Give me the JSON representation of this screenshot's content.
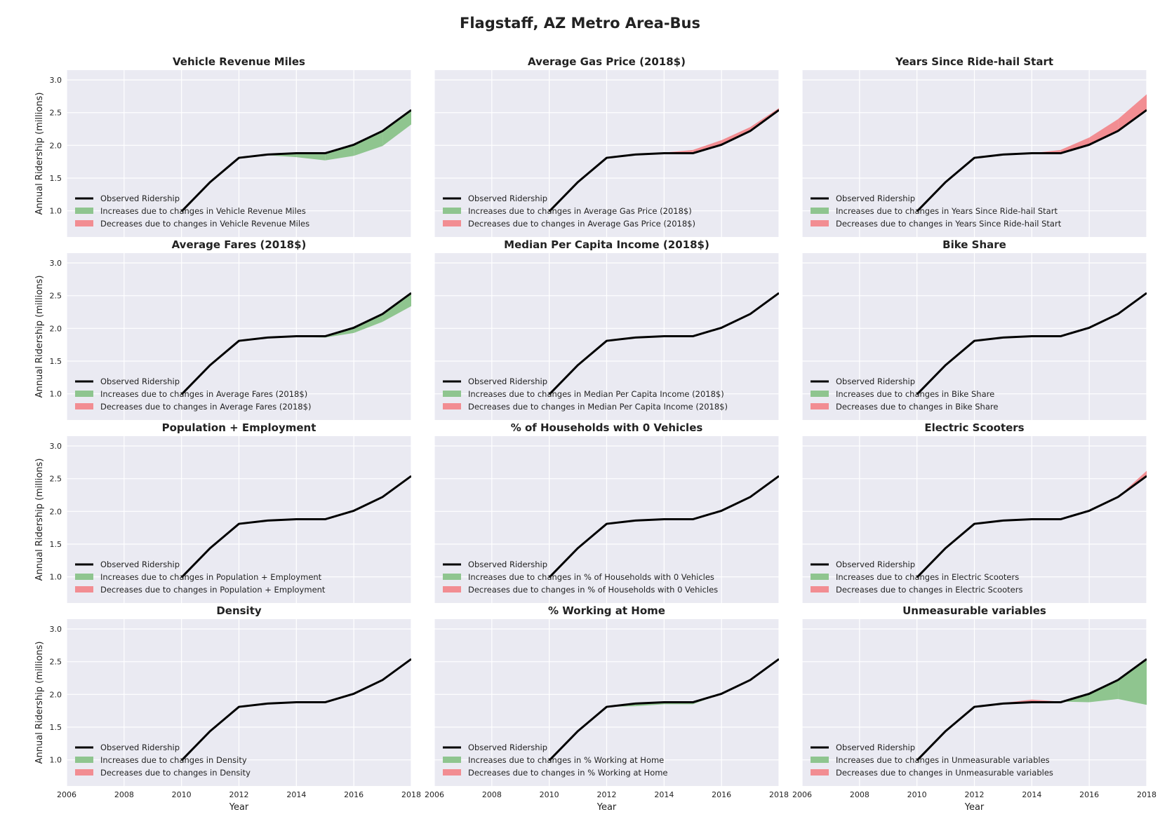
{
  "title": "Flagstaff, AZ Metro Area-Bus",
  "colors": {
    "panel_bg": "#eaeaf2",
    "grid": "#ffffff",
    "observed": "#000000",
    "increase": "#8fc58f",
    "decrease": "#f28d92"
  },
  "chart_data": {
    "type": "line",
    "layout": "4x3 small multiples",
    "xlabel": "Year",
    "ylabel": "Annual Ridership (millions)",
    "xlim": [
      2006,
      2018
    ],
    "ylim": [
      0.6,
      3.15
    ],
    "x_ticks": [
      2006,
      2008,
      2010,
      2012,
      2014,
      2016,
      2018
    ],
    "y_ticks": [
      1.0,
      1.5,
      2.0,
      2.5,
      3.0
    ],
    "y_tick_labels": [
      "1.0",
      "1.5",
      "2.0",
      "2.5",
      "3.0"
    ],
    "grid": true,
    "legend_placement": "lower-left",
    "legend_observed": "Observed Ridership",
    "legend_increase_prefix": "Increases due to changes in ",
    "legend_decrease_prefix": "Decreases due to changes in ",
    "x": [
      2010,
      2011,
      2012,
      2013,
      2014,
      2015,
      2016,
      2017,
      2018
    ],
    "observed": [
      0.99,
      1.44,
      1.81,
      1.86,
      1.88,
      1.88,
      2.01,
      2.22,
      2.54
    ],
    "panels": [
      {
        "title": "Vehicle Revenue Miles",
        "variable": "Vehicle Revenue Miles",
        "counterfactual": [
          0.99,
          1.44,
          1.81,
          1.85,
          1.82,
          1.77,
          1.84,
          1.99,
          2.32
        ]
      },
      {
        "title": "Average Gas Price (2018$)",
        "variable": "Average Gas Price (2018$)",
        "counterfactual": [
          0.99,
          1.44,
          1.81,
          1.86,
          1.89,
          1.93,
          2.08,
          2.28,
          2.57
        ]
      },
      {
        "title": "Years Since Ride-hail Start",
        "variable": "Years Since Ride-hail Start",
        "counterfactual": [
          0.99,
          1.44,
          1.81,
          1.86,
          1.88,
          1.93,
          2.12,
          2.4,
          2.78
        ]
      },
      {
        "title": "Average Fares (2018$)",
        "variable": "Average Fares (2018$)",
        "counterfactual": [
          0.99,
          1.44,
          1.81,
          1.86,
          1.87,
          1.86,
          1.93,
          2.1,
          2.34
        ]
      },
      {
        "title": "Median Per Capita Income (2018$)",
        "variable": "Median Per Capita Income (2018$)",
        "counterfactual": [
          0.99,
          1.44,
          1.81,
          1.86,
          1.88,
          1.88,
          2.01,
          2.22,
          2.54
        ]
      },
      {
        "title": "Bike Share",
        "variable": "Bike Share",
        "counterfactual": [
          0.99,
          1.44,
          1.81,
          1.86,
          1.88,
          1.88,
          2.01,
          2.22,
          2.54
        ]
      },
      {
        "title": "Population + Employment",
        "variable": "Population + Employment",
        "counterfactual": [
          0.99,
          1.44,
          1.81,
          1.86,
          1.88,
          1.88,
          2.01,
          2.22,
          2.54
        ]
      },
      {
        "title": "% of Households with 0 Vehicles",
        "variable": "% of Households with 0 Vehicles",
        "counterfactual": [
          0.99,
          1.44,
          1.81,
          1.86,
          1.88,
          1.88,
          2.01,
          2.22,
          2.54
        ]
      },
      {
        "title": "Electric Scooters",
        "variable": "Electric Scooters",
        "counterfactual": [
          0.99,
          1.44,
          1.81,
          1.86,
          1.88,
          1.88,
          2.01,
          2.22,
          2.62
        ]
      },
      {
        "title": "Density",
        "variable": "Density",
        "counterfactual": [
          0.99,
          1.44,
          1.81,
          1.86,
          1.88,
          1.88,
          2.01,
          2.22,
          2.54
        ]
      },
      {
        "title": "% Working at Home",
        "variable": "% Working at Home",
        "counterfactual": [
          0.99,
          1.44,
          1.81,
          1.82,
          1.85,
          1.85,
          2.01,
          2.22,
          2.54
        ]
      },
      {
        "title": "Unmeasurable variables",
        "variable": "Unmeasurable variables",
        "counterfactual": [
          0.99,
          1.44,
          1.81,
          1.87,
          1.92,
          1.89,
          1.88,
          1.93,
          1.84
        ]
      }
    ]
  }
}
